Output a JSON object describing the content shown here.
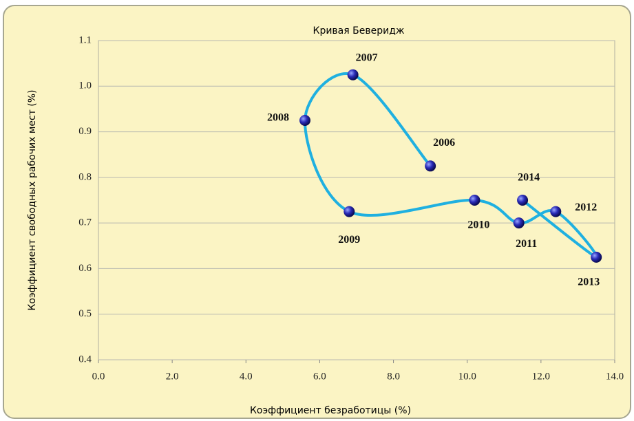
{
  "chart_data": {
    "type": "scatter",
    "title": "Кривая Беверидж",
    "x_label": "Коэффициент безработицы (%)",
    "y_label": "Коэффициент свободных рабочих мест (%)",
    "series": [
      {
        "name": null,
        "color": "#1fb0e0",
        "labels": [
          "2006",
          "2007",
          "2008",
          "2009",
          "2010",
          "2011",
          "2012",
          "2013",
          "2014"
        ],
        "x": [
          9.0,
          6.9,
          5.6,
          6.8,
          10.2,
          11.4,
          12.4,
          13.5,
          11.5
        ],
        "values": [
          0.825,
          1.025,
          0.925,
          0.725,
          0.75,
          0.7,
          0.725,
          0.625,
          0.75
        ]
      }
    ],
    "xlim": [
      0,
      14
    ],
    "xticks": [
      {
        "value": 0,
        "label": "0.0"
      },
      {
        "value": 2,
        "label": "2.0"
      },
      {
        "value": 4,
        "label": "4.0"
      },
      {
        "value": 6,
        "label": "6.0"
      },
      {
        "value": 8,
        "label": "8.0"
      },
      {
        "value": 10,
        "label": "10.0"
      },
      {
        "value": 12,
        "label": "12.0"
      },
      {
        "value": 14,
        "label": "14.0"
      }
    ],
    "ylim": [
      0.4,
      1.1
    ],
    "yticks": [
      0.4,
      0.5,
      0.6,
      0.7,
      0.8,
      0.9,
      {
        "value": 1,
        "label": "1.0"
      },
      1.1
    ],
    "grid": true
  }
}
